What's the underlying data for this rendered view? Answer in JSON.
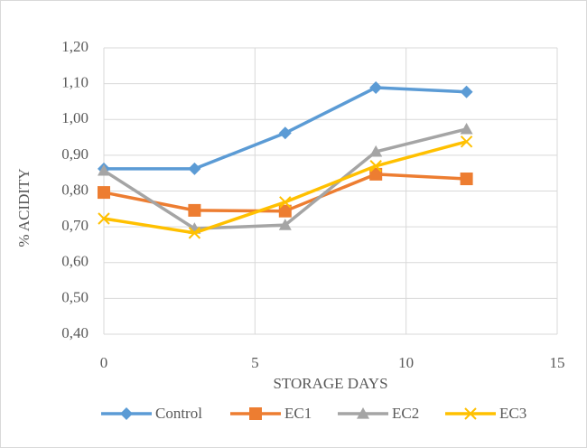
{
  "chart_data": {
    "type": "line",
    "x_label": "STORAGE DAYS",
    "y_label": "% ACIDITY",
    "x": [
      0,
      3,
      6,
      9,
      12
    ],
    "series": [
      {
        "name": "Control",
        "color": "#5b9bd5",
        "marker": "diamond",
        "values": [
          0.862,
          0.862,
          0.962,
          1.089,
          1.077
        ]
      },
      {
        "name": "EC1",
        "color": "#ed7d31",
        "marker": "square",
        "values": [
          0.796,
          0.746,
          0.744,
          0.847,
          0.834
        ]
      },
      {
        "name": "EC2",
        "color": "#a5a5a5",
        "marker": "triangle",
        "values": [
          0.857,
          0.695,
          0.705,
          0.91,
          0.973
        ]
      },
      {
        "name": "EC3",
        "color": "#ffc000",
        "marker": "x",
        "values": [
          0.723,
          0.683,
          0.769,
          0.87,
          0.938
        ]
      }
    ],
    "xlim": [
      0,
      15
    ],
    "xticks": [
      0,
      5,
      10,
      15
    ],
    "ylim": [
      0.4,
      1.2
    ],
    "yticks": [
      {
        "value": 0.4,
        "label": "0,40"
      },
      {
        "value": 0.5,
        "label": "0,50"
      },
      {
        "value": 0.6,
        "label": "0,60"
      },
      {
        "value": 0.7,
        "label": "0,70"
      },
      {
        "value": 0.8,
        "label": "0,80"
      },
      {
        "value": 0.9,
        "label": "0,90"
      },
      {
        "value": 1.0,
        "label": "1,00"
      },
      {
        "value": 1.1,
        "label": "1,10"
      },
      {
        "value": 1.2,
        "label": "1,20"
      }
    ],
    "grid": true,
    "legend": "bottom"
  }
}
